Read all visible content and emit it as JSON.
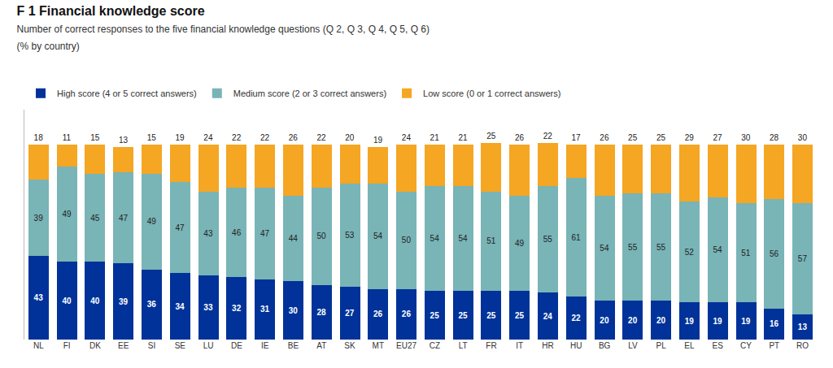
{
  "chart_data": {
    "type": "bar",
    "title": "F 1 Financial knowledge score",
    "subtitle": [
      "Number of correct responses to the five financial knowledge questions (Q 2, Q 3, Q 4, Q 5, Q 6)",
      "(% by country)"
    ],
    "categories": [
      "NL",
      "FI",
      "DK",
      "EE",
      "SI",
      "SE",
      "LU",
      "DE",
      "IE",
      "BE",
      "AT",
      "SK",
      "MT",
      "EU27",
      "CZ",
      "LT",
      "FR",
      "IT",
      "HR",
      "HU",
      "BG",
      "LV",
      "PL",
      "EL",
      "ES",
      "CY",
      "PT",
      "RO"
    ],
    "series": [
      {
        "name": "High score (4 or 5 correct answers)",
        "color": "#003299",
        "values": [
          43,
          40,
          40,
          39,
          36,
          34,
          33,
          32,
          31,
          30,
          28,
          27,
          26,
          26,
          25,
          25,
          25,
          25,
          24,
          22,
          20,
          20,
          20,
          19,
          19,
          19,
          16,
          13
        ]
      },
      {
        "name": "Medium score (2 or 3 correct answers)",
        "color": "#79B4B7",
        "values": [
          39,
          49,
          45,
          47,
          49,
          47,
          43,
          46,
          47,
          44,
          50,
          53,
          54,
          50,
          54,
          54,
          51,
          49,
          55,
          61,
          54,
          55,
          55,
          52,
          54,
          51,
          56,
          57
        ]
      },
      {
        "name": "Low score (0 or 1 correct answers)",
        "color": "#F5A623",
        "values": [
          18,
          11,
          15,
          13,
          15,
          19,
          24,
          22,
          22,
          26,
          22,
          20,
          19,
          24,
          21,
          21,
          25,
          26,
          22,
          17,
          26,
          25,
          25,
          29,
          27,
          30,
          28,
          30
        ]
      }
    ],
    "stacked": true,
    "data_labels": true,
    "ylim": [
      0,
      118
    ],
    "tick_labels": "x",
    "grid": false,
    "legend": "top"
  }
}
